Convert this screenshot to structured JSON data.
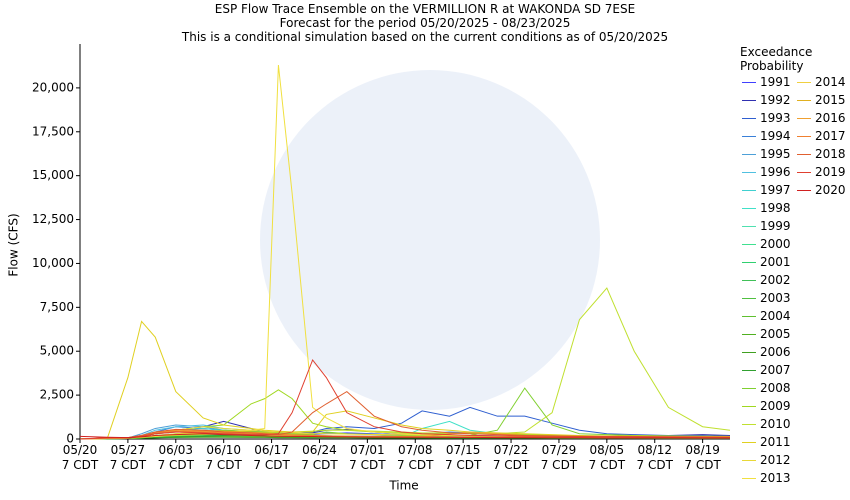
{
  "chart_data": {
    "type": "line",
    "title": "ESP Flow Trace Ensemble on the VERMILLION R at WAKONDA SD 7ESE",
    "subtitle": "Forecast for the period 05/20/2025 - 08/23/2025",
    "note": "This is a conditional simulation based on the current conditions as of 05/20/2025",
    "x_label": "Time",
    "y_label": "Flow (CFS)",
    "legend_title": "Exceedance Probability",
    "xlim": [
      "05/20",
      "08/23"
    ],
    "xticks": [
      {
        "value": "05/20",
        "label": "05/20\n7 CDT"
      },
      {
        "value": "05/27",
        "label": "05/27\n7 CDT"
      },
      {
        "value": "06/03",
        "label": "06/03\n7 CDT"
      },
      {
        "value": "06/10",
        "label": "06/10\n7 CDT"
      },
      {
        "value": "06/17",
        "label": "06/17\n7 CDT"
      },
      {
        "value": "06/24",
        "label": "06/24\n7 CDT"
      },
      {
        "value": "07/01",
        "label": "07/01\n7 CDT"
      },
      {
        "value": "07/08",
        "label": "07/08\n7 CDT"
      },
      {
        "value": "07/15",
        "label": "07/15\n7 CDT"
      },
      {
        "value": "07/22",
        "label": "07/22\n7 CDT"
      },
      {
        "value": "07/29",
        "label": "07/29\n7 CDT"
      },
      {
        "value": "08/05",
        "label": "08/05\n7 CDT"
      },
      {
        "value": "08/12",
        "label": "08/12\n7 CDT"
      },
      {
        "value": "08/19",
        "label": "08/19\n7 CDT"
      }
    ],
    "ylim": [
      0,
      22500
    ],
    "yticks": [
      0,
      {
        "value": 2500,
        "label": "2,500"
      },
      {
        "value": 5000,
        "label": "5,000"
      },
      {
        "value": 7500,
        "label": "7,500"
      },
      {
        "value": 10000,
        "label": "10,000"
      },
      {
        "value": 12500,
        "label": "12,500"
      },
      {
        "value": 15000,
        "label": "15,000"
      },
      {
        "value": 17500,
        "label": "17,500"
      },
      {
        "value": 20000,
        "label": "20,000"
      }
    ],
    "grid": false,
    "x": [
      "05/20",
      "05/24",
      "05/27",
      "05/29",
      "05/31",
      "06/03",
      "06/07",
      "06/10",
      "06/14",
      "06/16",
      "06/18",
      "06/20",
      "06/23",
      "06/25",
      "06/28",
      "07/02",
      "07/06",
      "07/09",
      "07/13",
      "07/16",
      "07/20",
      "07/24",
      "07/28",
      "08/01",
      "08/05",
      "08/09",
      "08/14",
      "08/19",
      "08/23"
    ],
    "series": [
      {
        "name": "1991",
        "color": "#4040ff",
        "values": [
          0,
          50,
          80,
          150,
          300,
          400,
          500,
          450,
          350,
          300,
          280,
          260,
          250,
          300,
          350,
          300,
          250,
          220,
          200,
          180,
          170,
          150,
          140,
          130,
          120,
          110,
          100,
          90,
          90
        ]
      },
      {
        "name": "1992",
        "color": "#3030b0",
        "values": [
          0,
          50,
          80,
          150,
          300,
          500,
          700,
          1000,
          600,
          400,
          350,
          300,
          350,
          500,
          550,
          400,
          300,
          250,
          220,
          200,
          180,
          160,
          150,
          140,
          130,
          120,
          200,
          250,
          200
        ]
      },
      {
        "name": "1993",
        "color": "#2f5fd0",
        "values": [
          0,
          40,
          60,
          100,
          150,
          200,
          250,
          300,
          250,
          200,
          200,
          250,
          400,
          600,
          700,
          600,
          900,
          1600,
          1300,
          1800,
          1300,
          1300,
          900,
          500,
          300,
          250,
          200,
          200,
          150
        ]
      },
      {
        "name": "1994",
        "color": "#3a80d8",
        "values": [
          0,
          50,
          60,
          200,
          400,
          700,
          600,
          500,
          400,
          350,
          300,
          280,
          300,
          350,
          300,
          280,
          250,
          300,
          400,
          350,
          300,
          250,
          200,
          180,
          150,
          150,
          130,
          120,
          110
        ]
      },
      {
        "name": "1995",
        "color": "#4da0d8",
        "values": [
          0,
          40,
          60,
          300,
          600,
          800,
          700,
          500,
          400,
          300,
          250,
          220,
          200,
          180,
          170,
          160,
          150,
          140,
          130,
          120,
          110,
          100,
          100,
          90,
          90,
          90,
          80,
          80,
          80
        ]
      },
      {
        "name": "1996",
        "color": "#50c0e0",
        "values": [
          0,
          30,
          50,
          200,
          500,
          700,
          800,
          600,
          500,
          400,
          300,
          250,
          200,
          180,
          160,
          150,
          140,
          130,
          120,
          110,
          100,
          100,
          90,
          90,
          80,
          80,
          80,
          70,
          70
        ]
      },
      {
        "name": "1997",
        "color": "#40d0d0",
        "values": [
          0,
          30,
          50,
          150,
          300,
          500,
          600,
          500,
          400,
          350,
          300,
          250,
          200,
          180,
          160,
          150,
          140,
          130,
          120,
          110,
          100,
          100,
          90,
          90,
          80,
          80,
          80,
          70,
          70
        ]
      },
      {
        "name": "1998",
        "color": "#40e0c8",
        "values": [
          0,
          30,
          40,
          100,
          200,
          300,
          350,
          300,
          250,
          200,
          180,
          160,
          150,
          140,
          130,
          120,
          110,
          600,
          1000,
          500,
          300,
          200,
          150,
          130,
          120,
          110,
          100,
          90,
          90
        ]
      },
      {
        "name": "1999",
        "color": "#50e0b0",
        "values": [
          0,
          30,
          40,
          100,
          200,
          250,
          300,
          250,
          200,
          180,
          160,
          150,
          140,
          130,
          120,
          110,
          100,
          100,
          90,
          90,
          80,
          80,
          80,
          70,
          70,
          70,
          60,
          60,
          60
        ]
      },
      {
        "name": "2000",
        "color": "#40e090",
        "values": [
          0,
          20,
          30,
          80,
          150,
          200,
          250,
          200,
          180,
          160,
          150,
          140,
          130,
          120,
          110,
          100,
          90,
          90,
          80,
          80,
          70,
          70,
          70,
          60,
          60,
          60,
          50,
          50,
          50
        ]
      },
      {
        "name": "2001",
        "color": "#30d070",
        "values": [
          0,
          20,
          30,
          60,
          100,
          150,
          200,
          250,
          300,
          250,
          200,
          180,
          160,
          150,
          140,
          130,
          120,
          110,
          100,
          100,
          90,
          90,
          80,
          80,
          70,
          70,
          60,
          60,
          60
        ]
      },
      {
        "name": "2002",
        "color": "#40c058",
        "values": [
          0,
          20,
          30,
          60,
          100,
          150,
          200,
          180,
          160,
          150,
          140,
          130,
          120,
          110,
          100,
          100,
          90,
          90,
          80,
          80,
          70,
          70,
          70,
          60,
          60,
          60,
          50,
          50,
          50
        ]
      },
      {
        "name": "2003",
        "color": "#50c040",
        "values": [
          0,
          20,
          30,
          60,
          100,
          120,
          150,
          140,
          130,
          120,
          110,
          100,
          100,
          90,
          90,
          80,
          80,
          70,
          70,
          70,
          60,
          60,
          60,
          50,
          50,
          50,
          50,
          40,
          40
        ]
      },
      {
        "name": "2004",
        "color": "#60c030",
        "values": [
          0,
          20,
          30,
          50,
          80,
          100,
          120,
          130,
          150,
          140,
          130,
          120,
          110,
          100,
          100,
          90,
          90,
          80,
          80,
          70,
          70,
          70,
          60,
          60,
          60,
          50,
          50,
          50,
          50
        ]
      },
      {
        "name": "2005",
        "color": "#50b020",
        "values": [
          0,
          20,
          30,
          50,
          80,
          100,
          150,
          200,
          250,
          200,
          180,
          160,
          150,
          140,
          130,
          120,
          110,
          100,
          100,
          90,
          90,
          80,
          80,
          70,
          70,
          70,
          60,
          60,
          60
        ]
      },
      {
        "name": "2006",
        "color": "#40a020",
        "values": [
          0,
          20,
          30,
          50,
          70,
          90,
          100,
          100,
          90,
          90,
          80,
          80,
          70,
          70,
          70,
          60,
          60,
          60,
          50,
          50,
          50,
          50,
          40,
          40,
          40,
          40,
          40,
          40,
          40
        ]
      },
      {
        "name": "2007",
        "color": "#30a030",
        "values": [
          0,
          20,
          30,
          50,
          80,
          120,
          150,
          200,
          300,
          250,
          200,
          180,
          160,
          150,
          140,
          130,
          120,
          110,
          100,
          100,
          90,
          90,
          80,
          80,
          70,
          70,
          60,
          60,
          60
        ]
      },
      {
        "name": "2008",
        "color": "#80d030",
        "values": [
          0,
          30,
          50,
          80,
          150,
          300,
          400,
          500,
          450,
          400,
          350,
          300,
          250,
          400,
          300,
          250,
          200,
          200,
          180,
          200,
          500,
          2900,
          800,
          300,
          250,
          200,
          180,
          160,
          150
        ]
      },
      {
        "name": "2009",
        "color": "#a0d820",
        "values": [
          0,
          50,
          80,
          150,
          300,
          500,
          700,
          800,
          2000,
          2300,
          2800,
          2300,
          900,
          700,
          500,
          400,
          350,
          300,
          300,
          350,
          300,
          250,
          200,
          180,
          160,
          150,
          140,
          130,
          120
        ]
      },
      {
        "name": "2010",
        "color": "#c0e030",
        "values": [
          0,
          40,
          60,
          100,
          150,
          200,
          250,
          300,
          300,
          350,
          400,
          400,
          450,
          500,
          500,
          450,
          400,
          350,
          350,
          300,
          300,
          400,
          1500,
          6800,
          8600,
          5000,
          1800,
          700,
          500
        ]
      },
      {
        "name": "2011",
        "color": "#e0d020",
        "values": [
          0,
          50,
          3500,
          6700,
          5800,
          2700,
          1200,
          800,
          600,
          500,
          450,
          400,
          400,
          1400,
          1600,
          1200,
          800,
          600,
          500,
          400,
          350,
          300,
          250,
          200,
          180,
          170,
          160,
          150,
          140
        ]
      },
      {
        "name": "2012",
        "color": "#e8d838",
        "values": [
          0,
          40,
          60,
          150,
          300,
          500,
          700,
          600,
          500,
          450,
          400,
          350,
          300,
          300,
          280,
          260,
          240,
          220,
          200,
          180,
          170,
          160,
          150,
          140,
          130,
          120,
          110,
          100,
          100
        ]
      },
      {
        "name": "2013",
        "color": "#f0e040",
        "values": [
          0,
          30,
          50,
          100,
          150,
          250,
          350,
          400,
          500,
          600,
          21300,
          14000,
          1800,
          1200,
          600,
          400,
          300,
          250,
          200,
          180,
          160,
          150,
          140,
          130,
          120,
          110,
          100,
          90,
          90
        ]
      },
      {
        "name": "2014",
        "color": "#f0d040",
        "values": [
          0,
          30,
          50,
          100,
          200,
          300,
          400,
          350,
          300,
          250,
          200,
          180,
          160,
          150,
          140,
          130,
          120,
          110,
          100,
          100,
          90,
          90,
          80,
          80,
          70,
          70,
          60,
          60,
          60
        ]
      },
      {
        "name": "2015",
        "color": "#e0b020",
        "values": [
          0,
          30,
          50,
          150,
          300,
          400,
          500,
          450,
          400,
          350,
          300,
          250,
          200,
          180,
          160,
          150,
          140,
          130,
          120,
          110,
          100,
          100,
          90,
          90,
          80,
          80,
          70,
          70,
          70
        ]
      },
      {
        "name": "2016",
        "color": "#f0a030",
        "values": [
          0,
          30,
          50,
          200,
          400,
          500,
          450,
          400,
          350,
          300,
          250,
          220,
          200,
          180,
          160,
          150,
          140,
          130,
          300,
          400,
          300,
          200,
          150,
          130,
          120,
          110,
          100,
          90,
          90
        ]
      },
      {
        "name": "2017",
        "color": "#f08030",
        "values": [
          0,
          50,
          80,
          200,
          350,
          450,
          400,
          350,
          300,
          280,
          250,
          220,
          200,
          180,
          160,
          150,
          140,
          130,
          120,
          110,
          100,
          100,
          90,
          90,
          80,
          80,
          70,
          70,
          70
        ]
      },
      {
        "name": "2018",
        "color": "#e06030",
        "values": [
          0,
          60,
          80,
          200,
          400,
          550,
          500,
          400,
          350,
          300,
          250,
          400,
          1500,
          2000,
          2700,
          1300,
          700,
          500,
          350,
          300,
          250,
          200,
          180,
          160,
          150,
          140,
          130,
          120,
          110
        ]
      },
      {
        "name": "2019",
        "color": "#e04030",
        "values": [
          0,
          80,
          60,
          150,
          300,
          400,
          350,
          300,
          250,
          250,
          300,
          1500,
          4500,
          3500,
          1500,
          700,
          400,
          300,
          250,
          200,
          180,
          160,
          150,
          140,
          130,
          120,
          110,
          100,
          100
        ]
      },
      {
        "name": "2020",
        "color": "#d02020",
        "values": [
          150,
          100,
          80,
          120,
          200,
          250,
          300,
          250,
          200,
          180,
          160,
          150,
          140,
          130,
          120,
          110,
          100,
          100,
          90,
          90,
          80,
          80,
          70,
          70,
          60,
          60,
          60,
          50,
          50
        ]
      }
    ]
  }
}
